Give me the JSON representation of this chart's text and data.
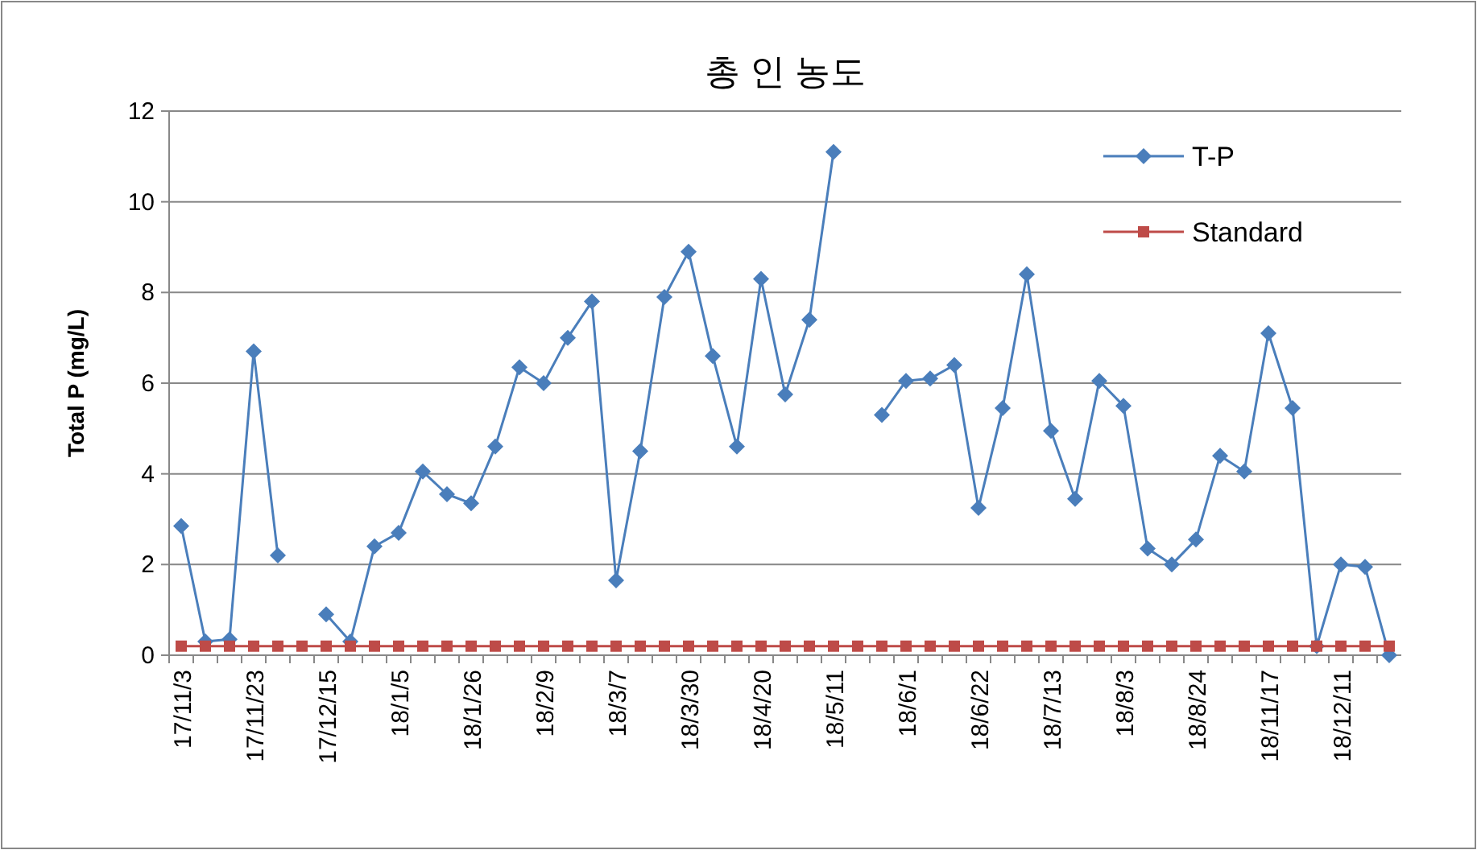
{
  "chart_data": {
    "type": "line",
    "title": "총 인 농도",
    "ylabel": "Total P (mg/L)",
    "categories": [
      "17/11/3",
      null,
      null,
      "17/11/23",
      null,
      null,
      "17/12/15",
      null,
      null,
      "18/1/5",
      null,
      null,
      "18/1/26",
      null,
      null,
      "18/2/9",
      null,
      null,
      "18/3/7",
      null,
      null,
      "18/3/30",
      null,
      null,
      "18/4/20",
      null,
      null,
      "18/5/11",
      null,
      null,
      "18/6/1",
      null,
      null,
      "18/6/22",
      null,
      null,
      "18/7/13",
      null,
      null,
      "18/8/3",
      null,
      null,
      "18/8/24",
      null,
      null,
      "18/11/17",
      null,
      null,
      "18/12/11",
      null,
      null
    ],
    "series": [
      {
        "name": "T-P",
        "color": "#4a7ebb",
        "marker": "diamond",
        "values": [
          2.85,
          0.3,
          0.35,
          6.7,
          2.2,
          null,
          0.9,
          0.3,
          2.4,
          2.7,
          4.05,
          3.55,
          3.35,
          4.6,
          6.35,
          6.0,
          7.0,
          7.8,
          1.65,
          4.5,
          7.9,
          8.9,
          6.6,
          4.6,
          8.3,
          5.75,
          7.4,
          11.1,
          null,
          5.3,
          6.05,
          6.1,
          6.4,
          3.25,
          5.45,
          8.4,
          4.95,
          3.45,
          6.05,
          5.5,
          2.35,
          2.0,
          2.55,
          4.4,
          4.05,
          7.1,
          5.45,
          0.2,
          2.0,
          1.95,
          0.0
        ]
      },
      {
        "name": "Standard",
        "color": "#be4b48",
        "marker": "square",
        "values": [
          0.2,
          0.2,
          0.2,
          0.2,
          0.2,
          0.2,
          0.2,
          0.2,
          0.2,
          0.2,
          0.2,
          0.2,
          0.2,
          0.2,
          0.2,
          0.2,
          0.2,
          0.2,
          0.2,
          0.2,
          0.2,
          0.2,
          0.2,
          0.2,
          0.2,
          0.2,
          0.2,
          0.2,
          0.2,
          0.2,
          0.2,
          0.2,
          0.2,
          0.2,
          0.2,
          0.2,
          0.2,
          0.2,
          0.2,
          0.2,
          0.2,
          0.2,
          0.2,
          0.2,
          0.2,
          0.2,
          0.2,
          0.2,
          0.2,
          0.2,
          0.2
        ]
      }
    ],
    "ylim": [
      0,
      12
    ],
    "yticks": [
      0,
      2,
      4,
      6,
      8,
      10,
      12
    ],
    "grid": "y",
    "legend": "top right",
    "line_style": "solid"
  }
}
